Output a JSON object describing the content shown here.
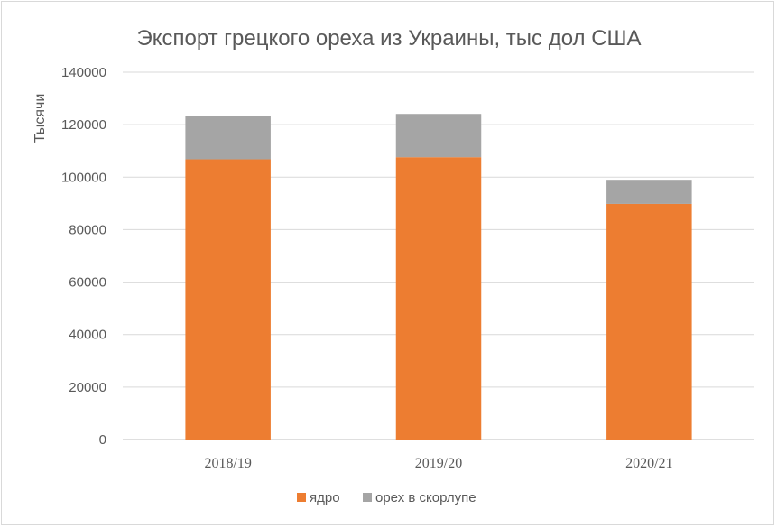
{
  "chart_data": {
    "type": "bar",
    "stacked": true,
    "title": "Экспорт грецкого ореха из Украины, тыс дол США",
    "xlabel": "",
    "ylabel": "Тысячи",
    "ylim": [
      0,
      140000
    ],
    "yticks": [
      "0",
      "20000",
      "40000",
      "60000",
      "80000",
      "100000",
      "120000",
      "140000"
    ],
    "grid": true,
    "legend_position": "bottom",
    "categories": [
      "2018/19",
      "2019/20",
      "2020/21"
    ],
    "series": [
      {
        "name": "ядро",
        "color": "#ed7d31",
        "values": [
          106800,
          107600,
          89800
        ]
      },
      {
        "name": "орех в скорлупе",
        "color": "#a5a5a5",
        "values": [
          16600,
          16500,
          9200
        ]
      }
    ]
  }
}
